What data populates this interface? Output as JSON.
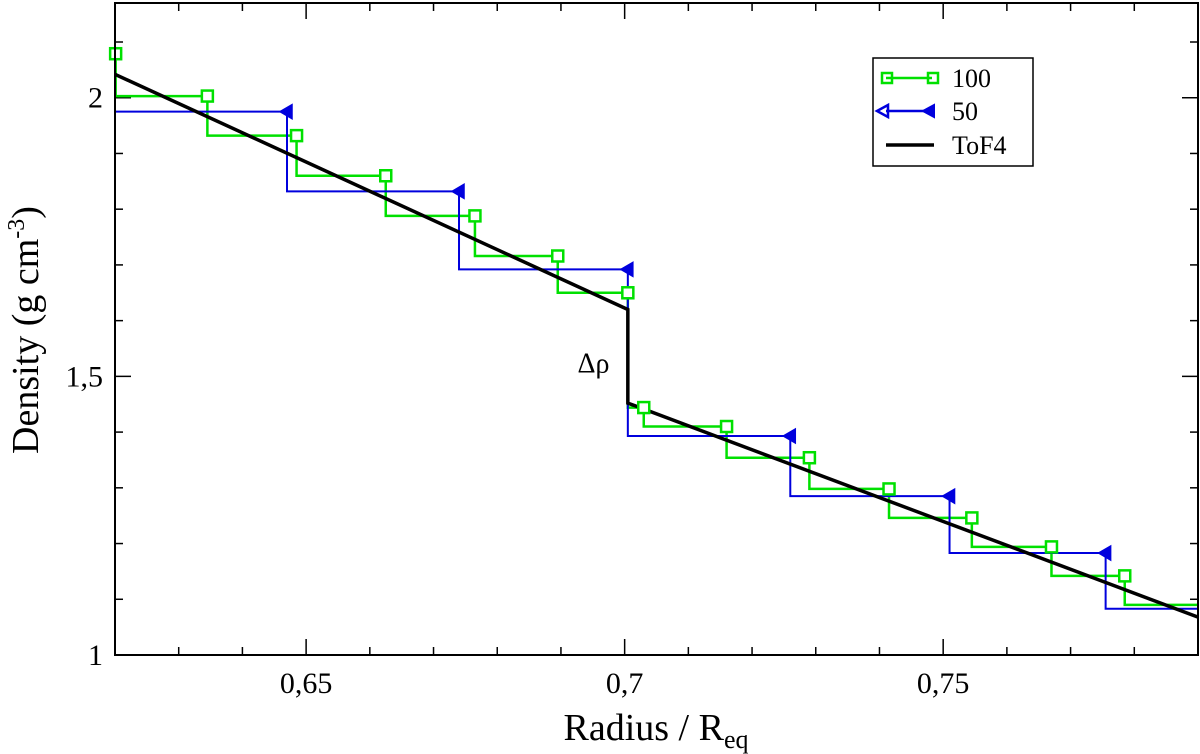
{
  "chart_data": {
    "type": "line",
    "title": "",
    "xlabel_main": "Radius / R",
    "xlabel_sub": "eq",
    "ylabel_main": "Density  (g cm",
    "ylabel_sup": "-3",
    "ylabel_close": ")",
    "xlim": [
      0.62,
      0.79
    ],
    "ylim": [
      1.0,
      2.17
    ],
    "x_ticks": [
      0.65,
      0.7,
      0.75
    ],
    "x_tick_labels": [
      "0,65",
      "0,7",
      "0,75"
    ],
    "y_ticks": [
      1.0,
      1.5,
      2.0
    ],
    "y_tick_labels": [
      "1",
      "1,5",
      "2"
    ],
    "annotation": {
      "text": "Δρ",
      "x": 0.697,
      "y": 1.525
    },
    "legend_position": "top-right",
    "series": [
      {
        "name": "100",
        "style": "step",
        "marker": "square",
        "color": "#00e000",
        "points": [
          {
            "x": 0.6201,
            "y": 2.079
          },
          {
            "x": 0.6345,
            "y": 2.003
          },
          {
            "x": 0.6485,
            "y": 1.932
          },
          {
            "x": 0.6625,
            "y": 1.86
          },
          {
            "x": 0.6765,
            "y": 1.788
          },
          {
            "x": 0.6895,
            "y": 1.716
          },
          {
            "x": 0.7005,
            "y": 1.65
          },
          {
            "x": 0.703,
            "y": 1.444
          },
          {
            "x": 0.716,
            "y": 1.41
          },
          {
            "x": 0.729,
            "y": 1.354
          },
          {
            "x": 0.7415,
            "y": 1.298
          },
          {
            "x": 0.7545,
            "y": 1.246
          },
          {
            "x": 0.767,
            "y": 1.194
          },
          {
            "x": 0.7785,
            "y": 1.142
          }
        ],
        "end": {
          "x": 0.79,
          "y": 1.09
        }
      },
      {
        "name": "50",
        "style": "step",
        "marker": "left-triangle",
        "color": "#0000dd",
        "points": [
          {
            "x": 0.647,
            "y": 1.975
          },
          {
            "x": 0.674,
            "y": 1.832
          },
          {
            "x": 0.7005,
            "y": 1.692
          },
          {
            "x": 0.726,
            "y": 1.393
          },
          {
            "x": 0.751,
            "y": 1.285
          },
          {
            "x": 0.7755,
            "y": 1.183
          }
        ],
        "start": {
          "x": 0.62,
          "y": 1.975
        },
        "end": {
          "x": 0.79,
          "y": 1.083
        }
      },
      {
        "name": "ToF4",
        "style": "line",
        "marker": "none",
        "color": "#000000",
        "points": [
          {
            "x": 0.62,
            "y": 2.042
          },
          {
            "x": 0.7005,
            "y": 1.62
          },
          {
            "x": 0.7005,
            "y": 1.452
          },
          {
            "x": 0.79,
            "y": 1.068
          }
        ]
      }
    ]
  }
}
